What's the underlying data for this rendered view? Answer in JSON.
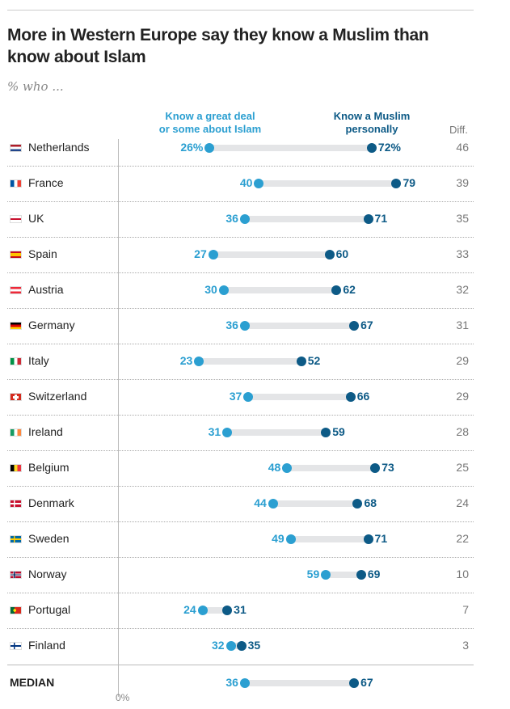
{
  "chart_data": {
    "type": "dot",
    "title": "More in Western Europe say they know a Muslim than know about Islam",
    "subtitle": "% who ...",
    "legend": {
      "light": "Know a great deal or some about Islam",
      "light_l1": "Know a great deal",
      "light_l2": "or some about Islam",
      "dark": "Know a Muslim personally",
      "dark_l1": "Know a Muslim",
      "dark_l2": "personally"
    },
    "diff_label": "Diff.",
    "axis_label": "0%",
    "xlim": [
      0,
      100
    ],
    "rows": [
      {
        "country": "Netherlands",
        "flag": "nl",
        "islam": 26,
        "muslim": 72,
        "diff": 46,
        "islam_label": "26%",
        "muslim_label": "72%"
      },
      {
        "country": "France",
        "flag": "fr",
        "islam": 40,
        "muslim": 79,
        "diff": 39,
        "islam_label": "40",
        "muslim_label": "79"
      },
      {
        "country": "UK",
        "flag": "uk",
        "islam": 36,
        "muslim": 71,
        "diff": 35,
        "islam_label": "36",
        "muslim_label": "71"
      },
      {
        "country": "Spain",
        "flag": "es",
        "islam": 27,
        "muslim": 60,
        "diff": 33,
        "islam_label": "27",
        "muslim_label": "60"
      },
      {
        "country": "Austria",
        "flag": "at",
        "islam": 30,
        "muslim": 62,
        "diff": 32,
        "islam_label": "30",
        "muslim_label": "62"
      },
      {
        "country": "Germany",
        "flag": "de",
        "islam": 36,
        "muslim": 67,
        "diff": 31,
        "islam_label": "36",
        "muslim_label": "67"
      },
      {
        "country": "Italy",
        "flag": "it",
        "islam": 23,
        "muslim": 52,
        "diff": 29,
        "islam_label": "23",
        "muslim_label": "52"
      },
      {
        "country": "Switzerland",
        "flag": "ch",
        "islam": 37,
        "muslim": 66,
        "diff": 29,
        "islam_label": "37",
        "muslim_label": "66"
      },
      {
        "country": "Ireland",
        "flag": "ie",
        "islam": 31,
        "muslim": 59,
        "diff": 28,
        "islam_label": "31",
        "muslim_label": "59"
      },
      {
        "country": "Belgium",
        "flag": "be",
        "islam": 48,
        "muslim": 73,
        "diff": 25,
        "islam_label": "48",
        "muslim_label": "73"
      },
      {
        "country": "Denmark",
        "flag": "dk",
        "islam": 44,
        "muslim": 68,
        "diff": 24,
        "islam_label": "44",
        "muslim_label": "68"
      },
      {
        "country": "Sweden",
        "flag": "se",
        "islam": 49,
        "muslim": 71,
        "diff": 22,
        "islam_label": "49",
        "muslim_label": "71"
      },
      {
        "country": "Norway",
        "flag": "no",
        "islam": 59,
        "muslim": 69,
        "diff": 10,
        "islam_label": "59",
        "muslim_label": "69"
      },
      {
        "country": "Portugal",
        "flag": "pt",
        "islam": 24,
        "muslim": 31,
        "diff": 7,
        "islam_label": "24",
        "muslim_label": "31"
      },
      {
        "country": "Finland",
        "flag": "fi",
        "islam": 32,
        "muslim": 35,
        "diff": 3,
        "islam_label": "32",
        "muslim_label": "35"
      }
    ],
    "median": {
      "label": "MEDIAN",
      "islam": 36,
      "muslim": 67,
      "islam_label": "36",
      "muslim_label": "67"
    },
    "colors": {
      "light": "#2b9fd1",
      "dark": "#0d5a86",
      "bar": "#e4e5e7"
    }
  }
}
